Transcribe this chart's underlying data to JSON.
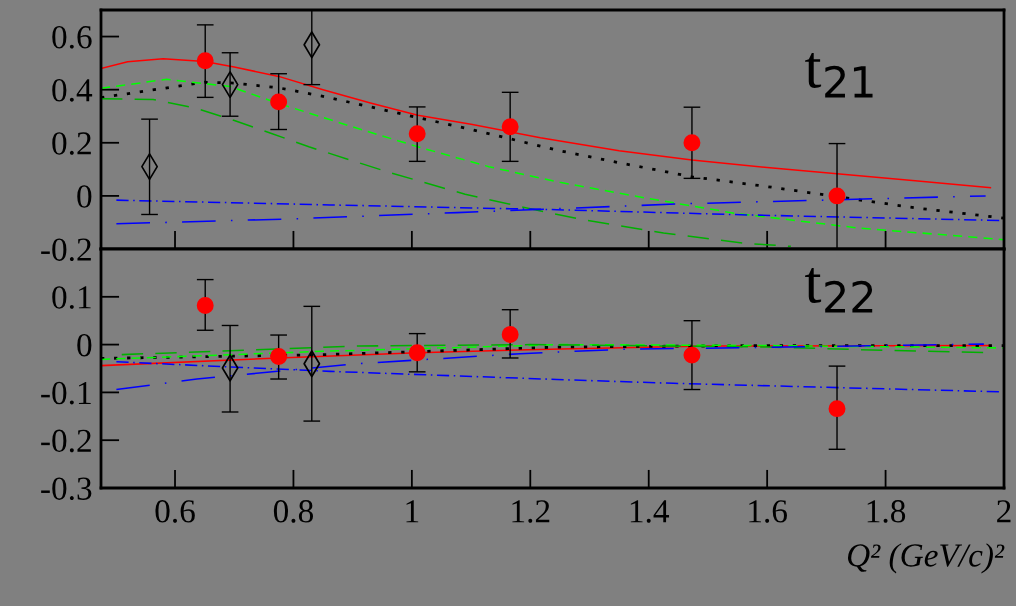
{
  "chart_data": [
    {
      "type": "line",
      "annotations": [
        "t$_{21}$"
      ],
      "xlim": [
        0.475,
        2.0
      ],
      "xticks": [
        {
          "value": 0.6,
          "label": null
        },
        {
          "value": 0.8,
          "label": null
        },
        {
          "value": 1.0,
          "label": null
        },
        {
          "value": 1.2,
          "label": null
        },
        {
          "value": 1.4,
          "label": null
        },
        {
          "value": 1.6,
          "label": null
        },
        {
          "value": 1.8,
          "label": null
        },
        {
          "value": 2.0,
          "label": null
        }
      ],
      "ylim": [
        -0.2,
        0.7
      ],
      "yticks": [
        -0.2,
        0,
        0.2,
        0.4,
        0.6
      ],
      "tick_labels": "y",
      "series": [
        {
          "color": "#ff0000",
          "line_style": "solid",
          "x": [
            0.475,
            0.52,
            0.58,
            0.65,
            0.7,
            0.775,
            0.85,
            0.93,
            1.01,
            1.1,
            1.217,
            1.35,
            1.473,
            1.6,
            1.718,
            1.85,
            1.977
          ],
          "values": [
            0.48,
            0.505,
            0.516,
            0.506,
            0.485,
            0.45,
            0.4,
            0.35,
            0.304,
            0.27,
            0.219,
            0.17,
            0.135,
            0.107,
            0.083,
            0.057,
            0.031
          ]
        },
        {
          "type": "line",
          "color": "#000000",
          "line_style": "dotted",
          "x": [
            0.475,
            0.55,
            0.65,
            0.7,
            0.775,
            0.85,
            1.01,
            1.1,
            1.25,
            1.35,
            1.473,
            1.6,
            1.718,
            1.85,
            2.0
          ],
          "values": [
            0.37,
            0.395,
            0.428,
            0.425,
            0.407,
            0.375,
            0.295,
            0.25,
            0.17,
            0.125,
            0.072,
            0.035,
            -0.003,
            -0.045,
            -0.084
          ]
        },
        {
          "type": "line",
          "color": "#00ff00",
          "line_style": "dashed",
          "x": [
            0.475,
            0.586,
            0.693,
            0.775,
            0.9,
            1.01,
            1.13,
            1.25,
            1.4,
            1.544,
            1.75,
            2.0
          ],
          "values": [
            0.405,
            0.439,
            0.412,
            0.348,
            0.26,
            0.185,
            0.11,
            0.051,
            -0.01,
            -0.065,
            -0.12,
            -0.165
          ]
        },
        {
          "type": "line",
          "color": "#00b000",
          "line_style": "longdash",
          "x": [
            0.475,
            0.563,
            0.637,
            0.699,
            0.763,
            0.826,
            0.958,
            1.09,
            1.222,
            1.29,
            1.425,
            1.56,
            1.64
          ],
          "values": [
            0.366,
            0.363,
            0.329,
            0.285,
            0.235,
            0.185,
            0.091,
            0.006,
            -0.059,
            -0.09,
            -0.14,
            -0.178,
            -0.19
          ]
        },
        {
          "type": "line",
          "color": "#0000ff",
          "line_style": "dashdot",
          "x": [
            0.501,
            0.862,
            1.245,
            1.555,
            2.0
          ],
          "values": [
            -0.016,
            -0.034,
            -0.052,
            -0.071,
            -0.093
          ]
        },
        {
          "type": "line",
          "color": "#0000ff",
          "line_style": "longdashdot",
          "x": [
            0.501,
            0.806,
            1.076,
            1.453,
            1.969
          ],
          "values": [
            -0.105,
            -0.086,
            -0.063,
            -0.03,
            0.0
          ]
        },
        {
          "type": "scatter",
          "color": "#ff0000",
          "marker": "circle",
          "x": [
            0.651,
            0.775,
            1.009,
            1.166,
            1.473,
            1.718
          ],
          "values": [
            0.509,
            0.354,
            0.234,
            0.26,
            0.2,
            0.0
          ],
          "errors": [
            [
              0.371,
              0.644
            ],
            [
              0.25,
              0.46
            ],
            [
              0.13,
              0.335
            ],
            [
              0.13,
              0.39
            ],
            [
              0.066,
              0.334
            ],
            [
              -0.2,
              0.197
            ]
          ]
        },
        {
          "type": "scatter",
          "color": "#000000",
          "marker": "diamond",
          "x": [
            0.557,
            0.693,
            0.831
          ],
          "values": [
            0.11,
            0.419,
            0.569
          ],
          "errors": [
            [
              -0.07,
              0.289
            ],
            [
              0.3,
              0.539
            ],
            [
              0.419,
              0.7
            ]
          ]
        }
      ]
    },
    {
      "type": "line",
      "annotations": [
        "t$_{22}$"
      ],
      "xlabel": "Q² (GeV/c)²",
      "xlim": [
        0.475,
        2.0
      ],
      "xticks": [
        0.6,
        0.8,
        1,
        1.2,
        1.4,
        1.6,
        1.8,
        2
      ],
      "ylim": [
        -0.3,
        0.2
      ],
      "yticks": [
        -0.3,
        -0.2,
        -0.1,
        0,
        0.1
      ],
      "series": [
        {
          "color": "#ff0000",
          "line_style": "solid",
          "x": [
            0.475,
            0.775,
            1.01,
            1.251,
            1.5,
            1.977
          ],
          "values": [
            -0.044,
            -0.028,
            -0.017,
            -0.009,
            -0.003,
            -0.002
          ]
        },
        {
          "type": "line",
          "color": "#000000",
          "line_style": "dotted",
          "x": [
            0.475,
            0.85,
            1.251,
            1.6,
            2.0
          ],
          "values": [
            -0.029,
            -0.021,
            -0.005,
            -0.002,
            -0.002
          ]
        },
        {
          "type": "line",
          "color": "#00ff00",
          "line_style": "dashed",
          "x": [
            0.475,
            0.85,
            1.251,
            1.6,
            2.0
          ],
          "values": [
            -0.031,
            -0.014,
            0.0,
            -0.002,
            -0.007
          ]
        },
        {
          "type": "line",
          "color": "#00b000",
          "line_style": "longdash",
          "x": [
            0.51,
            0.91,
            1.2,
            1.6,
            1.8,
            1.98
          ],
          "values": [
            -0.021,
            -0.003,
            0.0,
            -0.005,
            -0.012,
            -0.017
          ]
        },
        {
          "type": "line",
          "color": "#0000ff",
          "line_style": "dashdot",
          "x": [
            0.501,
            0.862,
            1.245,
            1.442,
            2.0
          ],
          "values": [
            -0.036,
            -0.056,
            -0.073,
            -0.081,
            -0.099
          ]
        },
        {
          "type": "line",
          "color": "#0000ff",
          "line_style": "longdashdot",
          "x": [
            0.501,
            0.637,
            0.907,
            1.183,
            1.352,
            1.966
          ],
          "values": [
            -0.094,
            -0.072,
            -0.04,
            -0.019,
            -0.01,
            0.001
          ]
        },
        {
          "type": "scatter",
          "color": "#ff0000",
          "marker": "circle",
          "x": [
            0.651,
            0.775,
            1.009,
            1.166,
            1.473,
            1.718
          ],
          "values": [
            0.082,
            -0.025,
            -0.017,
            0.021,
            -0.022,
            -0.134
          ],
          "errors": [
            [
              0.03,
              0.136
            ],
            [
              -0.072,
              0.02
            ],
            [
              -0.057,
              0.023
            ],
            [
              -0.028,
              0.073
            ],
            [
              -0.094,
              0.05
            ],
            [
              -0.219,
              -0.045
            ]
          ]
        },
        {
          "type": "scatter",
          "color": "#000000",
          "marker": "diamond",
          "x": [
            0.693,
            0.831
          ],
          "values": [
            -0.049,
            -0.04
          ],
          "errors": [
            [
              -0.141,
              0.04
            ],
            [
              -0.16,
              0.08
            ]
          ]
        }
      ]
    }
  ]
}
